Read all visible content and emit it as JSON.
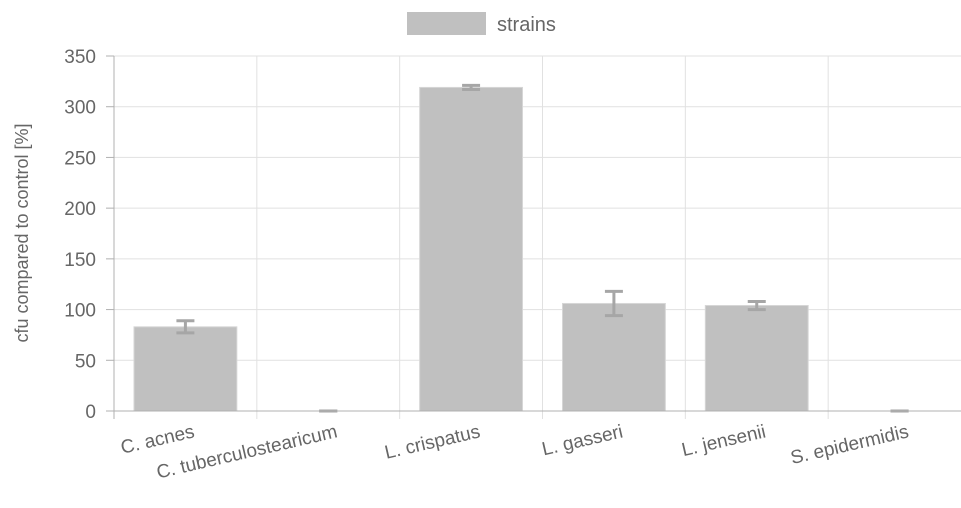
{
  "chart_data": {
    "type": "bar",
    "categories": [
      "C. acnes",
      "C. tuberculostearicum",
      "L. crispatus",
      "L. gasseri",
      "L. jensenii",
      "S. epidermidis"
    ],
    "series": [
      {
        "name": "strains",
        "values": [
          83,
          0,
          319,
          106,
          104,
          0
        ],
        "error": [
          6,
          0,
          2,
          12,
          4,
          0
        ],
        "color": "#c0c0c0",
        "error_color": "#a6a6a6"
      }
    ],
    "xlabel": "",
    "ylabel": "cfu compared to control [%]",
    "ylim": [
      0,
      350
    ],
    "yticks": [
      0,
      50,
      100,
      150,
      200,
      250,
      300,
      350
    ],
    "grid": true,
    "legend": "top-center"
  }
}
